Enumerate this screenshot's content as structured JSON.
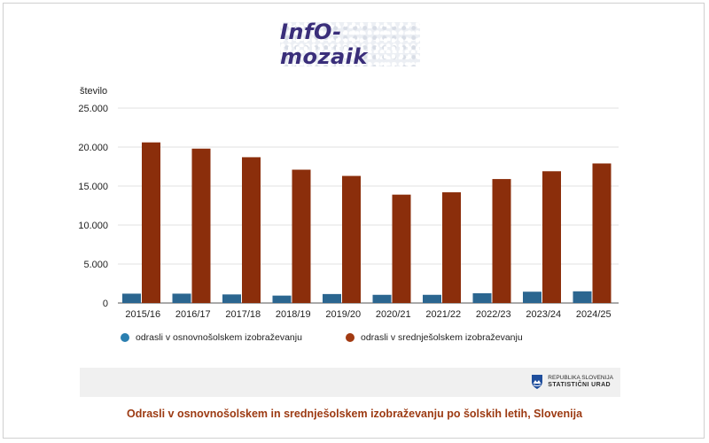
{
  "logo": {
    "text": "InfO-mozaik"
  },
  "chart_data": {
    "type": "bar",
    "ylabel": "število",
    "xlabel": "",
    "ylim": [
      0,
      25000
    ],
    "yticks": [
      0,
      5000,
      10000,
      15000,
      20000,
      25000
    ],
    "ytick_labels": [
      "0",
      "5.000",
      "10.000",
      "15.000",
      "20.000",
      "25.000"
    ],
    "grid": true,
    "legend_position": "bottom",
    "categories": [
      "2015/16",
      "2016/17",
      "2017/18",
      "2018/19",
      "2019/20",
      "2020/21",
      "2021/22",
      "2022/23",
      "2023/24",
      "2024/25"
    ],
    "series": [
      {
        "name": "odrasli v osnovnošolskem izobraževanju",
        "color": "#2b6690",
        "values": [
          1200,
          1200,
          1100,
          950,
          1150,
          1050,
          1050,
          1250,
          1450,
          1500
        ]
      },
      {
        "name": "odrasli v srednješolskem izobraževanju",
        "color": "#8b2e0b",
        "values": [
          20600,
          19800,
          18700,
          17100,
          16300,
          13900,
          14200,
          15900,
          16900,
          17900
        ]
      }
    ]
  },
  "legend": {
    "dot_colors": [
      "#2b7fb0",
      "#a23a12"
    ]
  },
  "footer": {
    "logo_line1": "REPUBLIKA SLOVENIJA",
    "logo_line2": "STATISTIČNI URAD"
  },
  "caption": "Odrasli v osnovnošolskem in srednješolskem izobraževanju po šolskih letih, Slovenija"
}
